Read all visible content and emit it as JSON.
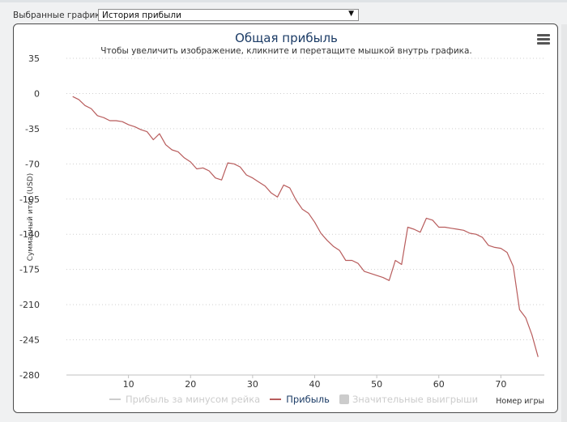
{
  "selector": {
    "label": "Выбранные графики:",
    "value": "История прибыли"
  },
  "chart_data": {
    "type": "line",
    "title": "Общая прибыль",
    "subtitle": "Чтобы увеличить изображение, кликните и перетащите мышкой внутрь графика.",
    "xlabel": "Номер игры",
    "ylabel": "Суммарный итог (USD)",
    "xlim": [
      0,
      77
    ],
    "ylim": [
      -280,
      35
    ],
    "x_ticks": [
      10,
      20,
      30,
      40,
      50,
      60,
      70
    ],
    "y_ticks": [
      35,
      0,
      -35,
      -70,
      -105,
      -140,
      -175,
      -210,
      -245,
      -280
    ],
    "grid": "horizontal dotted",
    "legend": [
      {
        "name": "Прибыль за минусом рейка",
        "visible": false,
        "color": "#cccccc"
      },
      {
        "name": "Прибыль",
        "visible": true,
        "color": "#b85c5c"
      },
      {
        "name": "Значительные выигрыши",
        "visible": false,
        "color": "#cccccc"
      }
    ],
    "series": [
      {
        "name": "Прибыль",
        "color": "#b85c5c",
        "x": [
          1,
          2,
          3,
          4,
          5,
          6,
          7,
          8,
          9,
          10,
          11,
          12,
          13,
          14,
          15,
          16,
          17,
          18,
          19,
          20,
          21,
          22,
          23,
          24,
          25,
          26,
          27,
          28,
          29,
          30,
          31,
          32,
          33,
          34,
          35,
          36,
          37,
          38,
          39,
          40,
          41,
          42,
          43,
          44,
          45,
          46,
          47,
          48,
          49,
          50,
          51,
          52,
          53,
          54,
          55,
          56,
          57,
          58,
          59,
          60,
          61,
          62,
          63,
          64,
          65,
          66,
          67,
          68,
          69,
          70,
          71,
          72,
          73,
          74,
          75,
          76
        ],
        "y": [
          -3,
          -6,
          -12,
          -15,
          -22,
          -24,
          -27,
          -27,
          -28,
          -31,
          -33,
          -36,
          -38,
          -46,
          -40,
          -51,
          -56,
          -58,
          -64,
          -68,
          -75,
          -74,
          -77,
          -84,
          -86,
          -69,
          -70,
          -73,
          -81,
          -84,
          -88,
          -92,
          -99,
          -103,
          -91,
          -94,
          -106,
          -115,
          -119,
          -128,
          -139,
          -146,
          -152,
          -156,
          -166,
          -166,
          -169,
          -177,
          -179,
          -181,
          -183,
          -186,
          -166,
          -170,
          -133,
          -135,
          -138,
          -124,
          -126,
          -133,
          -133,
          -134,
          -135,
          -136,
          -139,
          -140,
          -143,
          -151,
          -153,
          -154,
          -158,
          -172,
          -215,
          -223,
          -240,
          -262
        ]
      }
    ]
  }
}
